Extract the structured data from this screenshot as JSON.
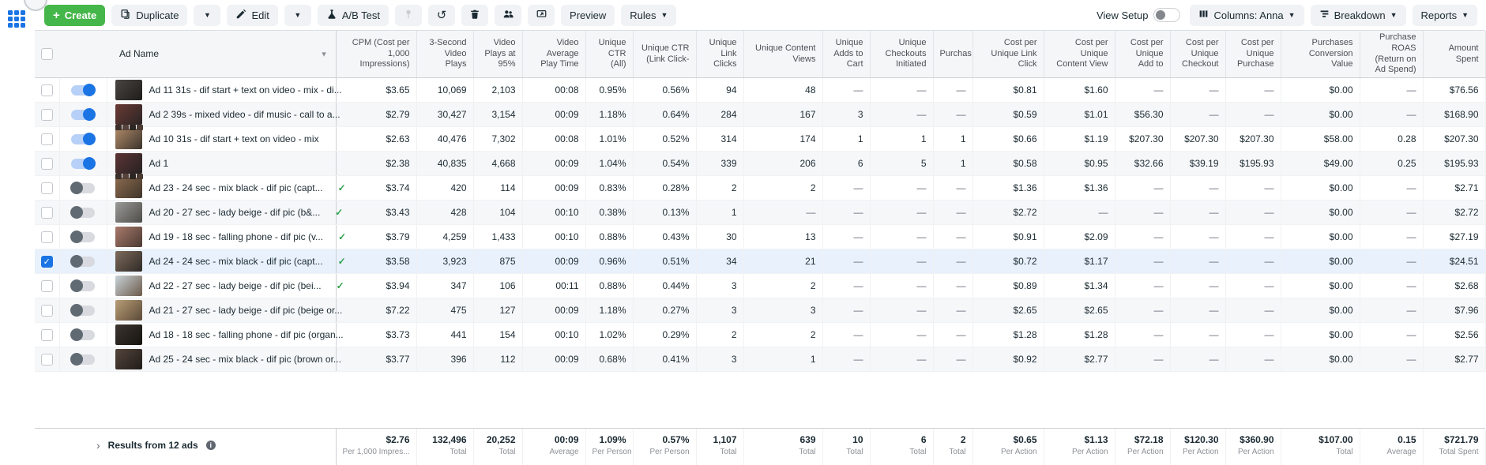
{
  "toolbar": {
    "create_label": "Create",
    "duplicate_label": "Duplicate",
    "edit_label": "Edit",
    "ab_test_label": "A/B Test",
    "preview_label": "Preview",
    "rules_label": "Rules",
    "view_setup_label": "View Setup",
    "columns_label": "Columns: Anna",
    "breakdown_label": "Breakdown",
    "reports_label": "Reports"
  },
  "colors": {
    "accent_blue": "#1b74e4",
    "create_green": "#45b649",
    "check_green": "#31a24c",
    "selected_row": "#e8f1fc"
  },
  "table": {
    "columns": [
      {
        "key": "ad_name",
        "label": "Ad Name"
      },
      {
        "key": "cpm",
        "label": "CPM (Cost per 1,000 Impressions)"
      },
      {
        "key": "video_plays_3s",
        "label": "3-Second Video Plays"
      },
      {
        "key": "video_plays_95",
        "label": "Video Plays at 95%"
      },
      {
        "key": "video_avg_play_time",
        "label": "Video Average Play Time"
      },
      {
        "key": "unique_ctr_all",
        "label": "Unique CTR (All)"
      },
      {
        "key": "unique_ctr_link_click",
        "label": "Unique CTR (Link Click-"
      },
      {
        "key": "unique_link_clicks",
        "label": "Unique Link Clicks"
      },
      {
        "key": "unique_content_views",
        "label": "Unique Content Views"
      },
      {
        "key": "unique_adds_to_cart",
        "label": "Unique Adds to Cart"
      },
      {
        "key": "unique_checkouts_initiated",
        "label": "Unique Checkouts Initiated"
      },
      {
        "key": "purchases",
        "label": "Purchas"
      },
      {
        "key": "cost_per_unique_link_click",
        "label": "Cost per Unique Link Click"
      },
      {
        "key": "cost_per_unique_content_view",
        "label": "Cost per Unique Content View"
      },
      {
        "key": "cost_per_unique_add_to_cart",
        "label": "Cost per Unique Add to"
      },
      {
        "key": "cost_per_unique_checkout",
        "label": "Cost per Unique Checkout"
      },
      {
        "key": "cost_per_unique_purchase",
        "label": "Cost per Unique Purchase"
      },
      {
        "key": "purchases_conversion_value",
        "label": "Purchases Conversion Value"
      },
      {
        "key": "purchase_roas",
        "label": "Purchase ROAS (Return on Ad Spend)"
      },
      {
        "key": "amount_spent",
        "label": "Amount Spent"
      }
    ],
    "rows": [
      {
        "name": "Ad 11 31s - dif start + text on video - mix - di...",
        "active": true,
        "checked": false,
        "selected": false,
        "approved": false,
        "strip": false,
        "thumb": [
          "#4a4642",
          "#1e1c1a"
        ],
        "metrics": [
          "$3.65",
          "10,069",
          "2,103",
          "00:08",
          "0.95%",
          "0.56%",
          "94",
          "48",
          "—",
          "—",
          "—",
          "$0.81",
          "$1.60",
          "—",
          "—",
          "—",
          "$0.00",
          "—",
          "$76.56"
        ]
      },
      {
        "name": "Ad 2 39s - mixed video - dif music - call to a...",
        "active": true,
        "checked": false,
        "selected": false,
        "approved": false,
        "strip": true,
        "thumb": [
          "#6b3a36",
          "#2a2524"
        ],
        "metrics": [
          "$2.79",
          "30,427",
          "3,154",
          "00:09",
          "1.18%",
          "0.64%",
          "284",
          "167",
          "3",
          "—",
          "—",
          "$0.59",
          "$1.01",
          "$56.30",
          "—",
          "—",
          "$0.00",
          "—",
          "$168.90"
        ]
      },
      {
        "name": "Ad 10 31s - dif start + text on video - mix",
        "active": true,
        "checked": false,
        "selected": false,
        "approved": false,
        "strip": false,
        "thumb": [
          "#b08968",
          "#3a332c"
        ],
        "metrics": [
          "$2.63",
          "40,476",
          "7,302",
          "00:08",
          "1.01%",
          "0.52%",
          "314",
          "174",
          "1",
          "1",
          "1",
          "$0.66",
          "$1.19",
          "$207.30",
          "$207.30",
          "$207.30",
          "$58.00",
          "0.28",
          "$207.30"
        ]
      },
      {
        "name": "Ad 1",
        "active": true,
        "checked": false,
        "selected": false,
        "approved": false,
        "strip": true,
        "thumb": [
          "#5c3434",
          "#262222"
        ],
        "metrics": [
          "$2.38",
          "40,835",
          "4,668",
          "00:09",
          "1.04%",
          "0.54%",
          "339",
          "206",
          "6",
          "5",
          "1",
          "$0.58",
          "$0.95",
          "$32.66",
          "$39.19",
          "$195.93",
          "$49.00",
          "0.25",
          "$195.93"
        ]
      },
      {
        "name": "Ad 23 - 24 sec - mix black - dif pic (capt...",
        "active": false,
        "checked": false,
        "selected": false,
        "approved": true,
        "strip": false,
        "thumb": [
          "#8a6a4f",
          "#40352a"
        ],
        "metrics": [
          "$3.74",
          "420",
          "114",
          "00:09",
          "0.83%",
          "0.28%",
          "2",
          "2",
          "—",
          "—",
          "—",
          "$1.36",
          "$1.36",
          "—",
          "—",
          "—",
          "$0.00",
          "—",
          "$2.71"
        ]
      },
      {
        "name": "Ad 20 - 27 sec - lady beige - dif pic (b&...",
        "active": false,
        "checked": false,
        "selected": false,
        "approved": true,
        "strip": false,
        "thumb": [
          "#9a9a98",
          "#4e4c48"
        ],
        "metrics": [
          "$3.43",
          "428",
          "104",
          "00:10",
          "0.38%",
          "0.13%",
          "1",
          "—",
          "—",
          "—",
          "—",
          "$2.72",
          "—",
          "—",
          "—",
          "—",
          "$0.00",
          "—",
          "$2.72"
        ]
      },
      {
        "name": "Ad 19 - 18 sec - falling phone - dif pic (v...",
        "active": false,
        "checked": false,
        "selected": false,
        "approved": true,
        "strip": false,
        "thumb": [
          "#a9786b",
          "#4a3b33"
        ],
        "metrics": [
          "$3.79",
          "4,259",
          "1,433",
          "00:10",
          "0.88%",
          "0.43%",
          "30",
          "13",
          "—",
          "—",
          "—",
          "$0.91",
          "$2.09",
          "—",
          "—",
          "—",
          "$0.00",
          "—",
          "$27.19"
        ]
      },
      {
        "name": "Ad 24 - 24 sec - mix black - dif pic (capt...",
        "active": false,
        "checked": true,
        "selected": true,
        "approved": true,
        "strip": false,
        "thumb": [
          "#7d6a5c",
          "#2f2a26"
        ],
        "metrics": [
          "$3.58",
          "3,923",
          "875",
          "00:09",
          "0.96%",
          "0.51%",
          "34",
          "21",
          "—",
          "—",
          "—",
          "$0.72",
          "$1.17",
          "—",
          "—",
          "—",
          "$0.00",
          "—",
          "$24.51"
        ]
      },
      {
        "name": "Ad 22 - 27 sec - lady beige - dif pic (bei...",
        "active": false,
        "checked": false,
        "selected": false,
        "approved": true,
        "strip": false,
        "thumb": [
          "#c9d3d8",
          "#6b5a4a"
        ],
        "metrics": [
          "$3.94",
          "347",
          "106",
          "00:11",
          "0.88%",
          "0.44%",
          "3",
          "2",
          "—",
          "—",
          "—",
          "$0.89",
          "$1.34",
          "—",
          "—",
          "—",
          "$0.00",
          "—",
          "$2.68"
        ]
      },
      {
        "name": "Ad 21 - 27 sec - lady beige - dif pic (beige or...",
        "active": false,
        "checked": false,
        "selected": false,
        "approved": false,
        "strip": false,
        "thumb": [
          "#b99d76",
          "#5a4a38"
        ],
        "metrics": [
          "$7.22",
          "475",
          "127",
          "00:09",
          "1.18%",
          "0.27%",
          "3",
          "3",
          "—",
          "—",
          "—",
          "$2.65",
          "$2.65",
          "—",
          "—",
          "—",
          "$0.00",
          "—",
          "$7.96"
        ]
      },
      {
        "name": "Ad 18 - 18 sec - falling phone - dif pic (organ...",
        "active": false,
        "checked": false,
        "selected": false,
        "approved": false,
        "strip": false,
        "thumb": [
          "#3c3531",
          "#16130f"
        ],
        "metrics": [
          "$3.73",
          "441",
          "154",
          "00:10",
          "1.02%",
          "0.29%",
          "2",
          "2",
          "—",
          "—",
          "—",
          "$1.28",
          "$1.28",
          "—",
          "—",
          "—",
          "$0.00",
          "—",
          "$2.56"
        ]
      },
      {
        "name": "Ad 25 - 24 sec - mix black - dif pic (brown or...",
        "active": false,
        "checked": false,
        "selected": false,
        "approved": false,
        "strip": false,
        "thumb": [
          "#54453c",
          "#201b18"
        ],
        "metrics": [
          "$3.77",
          "396",
          "112",
          "00:09",
          "0.68%",
          "0.41%",
          "3",
          "1",
          "—",
          "—",
          "—",
          "$0.92",
          "$2.77",
          "—",
          "—",
          "—",
          "$0.00",
          "—",
          "$2.77"
        ]
      }
    ],
    "footer": {
      "label": "Results from 12 ads",
      "cells": [
        {
          "value": "$2.76",
          "sub": "Per 1,000 Impres..."
        },
        {
          "value": "132,496",
          "sub": "Total"
        },
        {
          "value": "20,252",
          "sub": "Total"
        },
        {
          "value": "00:09",
          "sub": "Average"
        },
        {
          "value": "1.09%",
          "sub": "Per Person"
        },
        {
          "value": "0.57%",
          "sub": "Per Person"
        },
        {
          "value": "1,107",
          "sub": "Total"
        },
        {
          "value": "639",
          "sub": "Total"
        },
        {
          "value": "10",
          "sub": "Total"
        },
        {
          "value": "6",
          "sub": "Total"
        },
        {
          "value": "2",
          "sub": "Total"
        },
        {
          "value": "$0.65",
          "sub": "Per Action"
        },
        {
          "value": "$1.13",
          "sub": "Per Action"
        },
        {
          "value": "$72.18",
          "sub": "Per Action"
        },
        {
          "value": "$120.30",
          "sub": "Per Action"
        },
        {
          "value": "$360.90",
          "sub": "Per Action"
        },
        {
          "value": "$107.00",
          "sub": "Total"
        },
        {
          "value": "0.15",
          "sub": "Average"
        },
        {
          "value": "$721.79",
          "sub": "Total Spent"
        }
      ]
    }
  }
}
